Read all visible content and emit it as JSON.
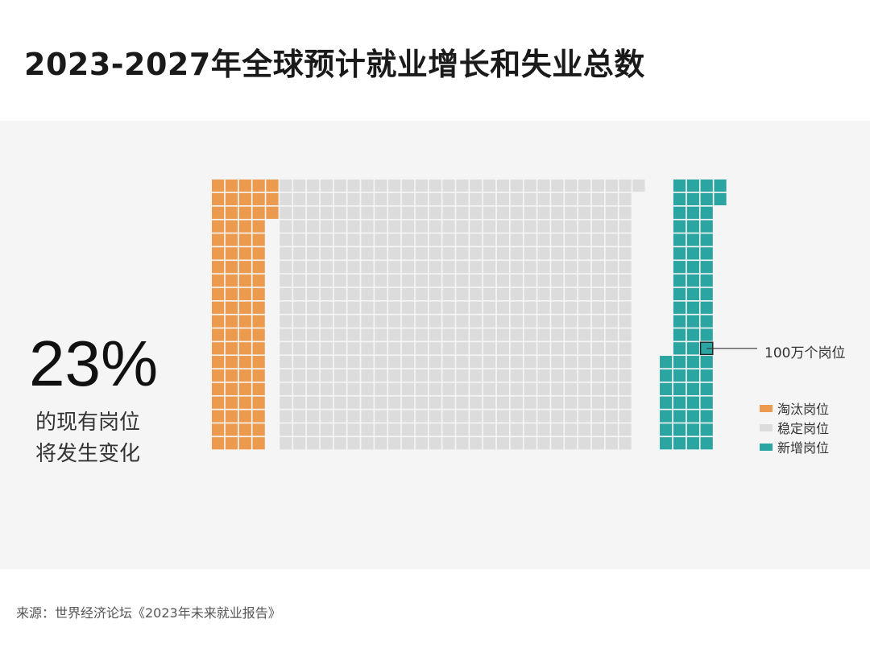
{
  "title": "2023-2027年全球预计就业增长和失业总数",
  "stat": {
    "value": "23%",
    "caption_line1": "的现有岗位",
    "caption_line2": "将发生变化"
  },
  "source": "来源：世界经济论坛《2023年未来就业报告》",
  "chart_data": {
    "type": "waffle",
    "unit_label": "100万个岗位",
    "grid": {
      "columns": 38,
      "rows": 20
    },
    "categories": [
      {
        "name": "淘汰岗位",
        "value": 83,
        "color": "#ec9a4e"
      },
      {
        "name": "稳定岗位",
        "value": 521,
        "color": "#dcdcdc"
      },
      {
        "name": "新增岗位",
        "value": 69,
        "color": "#2aa5a1"
      }
    ]
  }
}
